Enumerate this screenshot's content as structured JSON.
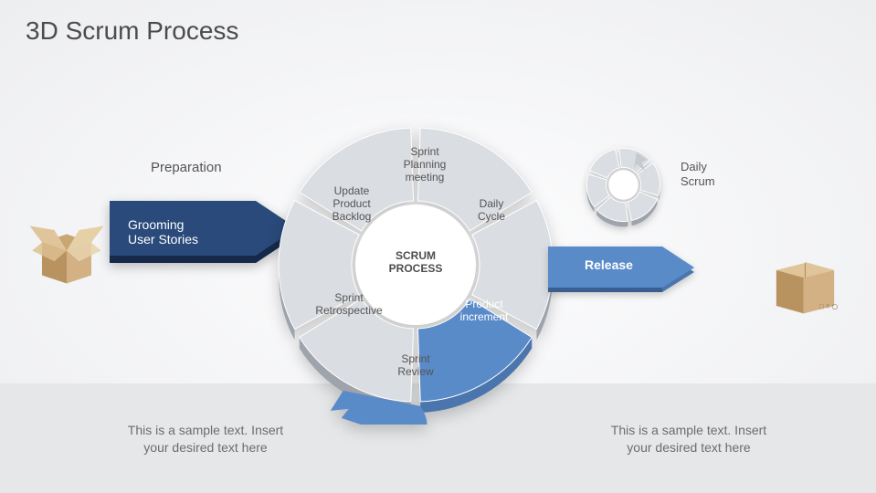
{
  "title": "3D Scrum Process",
  "preparation_label": "Preparation",
  "grooming_label": "Grooming\nUser Stories",
  "center_label": "SCRUM\nPROCESS",
  "daily_scrum_label": "Daily\nScrum",
  "release_label": "Release",
  "segments": {
    "update_backlog": "Update\nProduct\nBacklog",
    "sprint_planning": "Sprint\nPlanning\nmeeting",
    "daily_cycle": "Daily\nCycle",
    "product_increment": "Product\nincrement",
    "sprint_review": "Sprint\nReview",
    "sprint_retro": "Sprint\nRetrospective"
  },
  "sample_left": "This is a sample text. Insert\nyour desired text here",
  "sample_right": "This is a sample text. Insert\nyour desired text here",
  "colors": {
    "dark_blue": "#294a7a",
    "dark_blue_side": "#1d3558",
    "light_blue": "#5a8bc9",
    "light_blue_dark": "#4a75ad",
    "grey_light": "#dadde2",
    "grey_mid": "#c5c9d0",
    "grey_dark": "#9ea3ac",
    "box_tan": "#d4b185",
    "box_tan_dark": "#b8935f"
  },
  "ring_config": {
    "outer_r": 150,
    "inner_r": 70,
    "gap_deg": 4
  }
}
